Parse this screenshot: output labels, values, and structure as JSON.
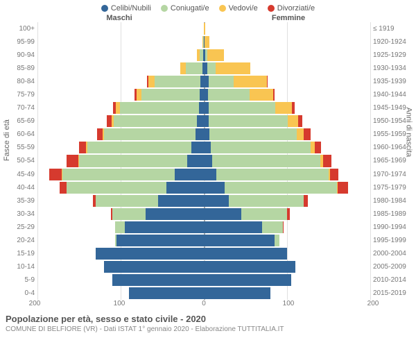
{
  "legend": [
    {
      "label": "Celibi/Nubili",
      "color": "#336699"
    },
    {
      "label": "Coniugati/e",
      "color": "#b5d6a3"
    },
    {
      "label": "Vedovi/e",
      "color": "#f9c552"
    },
    {
      "label": "Divorziati/e",
      "color": "#d63a2e"
    }
  ],
  "header_male": "Maschi",
  "header_female": "Femmine",
  "axis_left": "Fasce di età",
  "axis_right": "Anni di nascita",
  "x_max": 200,
  "x_ticks": [
    200,
    100,
    0,
    100,
    200
  ],
  "colors": {
    "single": "#336699",
    "married": "#b5d6a3",
    "widowed": "#f9c552",
    "divorced": "#d63a2e",
    "grid": "#e0e0e0",
    "center": "#aaaaaa",
    "bg": "#ffffff"
  },
  "title": "Popolazione per età, sesso e stato civile - 2020",
  "subtitle": "COMUNE DI BELFIORE (VR) - Dati ISTAT 1° gennaio 2020 - Elaborazione TUTTITALIA.IT",
  "rows": [
    {
      "age": "100+",
      "birth": "≤ 1919",
      "m": {
        "s": 0,
        "c": 0,
        "w": 0,
        "d": 0
      },
      "f": {
        "s": 0,
        "c": 0,
        "w": 2,
        "d": 0
      }
    },
    {
      "age": "95-99",
      "birth": "1920-1924",
      "m": {
        "s": 0,
        "c": 1,
        "w": 1,
        "d": 0
      },
      "f": {
        "s": 1,
        "c": 0,
        "w": 6,
        "d": 0
      }
    },
    {
      "age": "90-94",
      "birth": "1925-1929",
      "m": {
        "s": 1,
        "c": 4,
        "w": 3,
        "d": 0
      },
      "f": {
        "s": 2,
        "c": 2,
        "w": 20,
        "d": 0
      }
    },
    {
      "age": "85-89",
      "birth": "1930-1934",
      "m": {
        "s": 2,
        "c": 20,
        "w": 6,
        "d": 0
      },
      "f": {
        "s": 4,
        "c": 10,
        "w": 42,
        "d": 0
      }
    },
    {
      "age": "80-84",
      "birth": "1935-1939",
      "m": {
        "s": 4,
        "c": 55,
        "w": 8,
        "d": 1
      },
      "f": {
        "s": 6,
        "c": 30,
        "w": 40,
        "d": 1
      }
    },
    {
      "age": "75-79",
      "birth": "1940-1944",
      "m": {
        "s": 5,
        "c": 70,
        "w": 6,
        "d": 2
      },
      "f": {
        "s": 5,
        "c": 50,
        "w": 28,
        "d": 2
      }
    },
    {
      "age": "70-74",
      "birth": "1945-1949",
      "m": {
        "s": 6,
        "c": 95,
        "w": 5,
        "d": 3
      },
      "f": {
        "s": 6,
        "c": 80,
        "w": 20,
        "d": 3
      }
    },
    {
      "age": "65-69",
      "birth": "1950-1954",
      "m": {
        "s": 8,
        "c": 100,
        "w": 3,
        "d": 6
      },
      "f": {
        "s": 6,
        "c": 95,
        "w": 12,
        "d": 5
      }
    },
    {
      "age": "60-64",
      "birth": "1955-1959",
      "m": {
        "s": 10,
        "c": 110,
        "w": 2,
        "d": 6
      },
      "f": {
        "s": 7,
        "c": 105,
        "w": 8,
        "d": 8
      }
    },
    {
      "age": "55-59",
      "birth": "1960-1964",
      "m": {
        "s": 15,
        "c": 125,
        "w": 2,
        "d": 8
      },
      "f": {
        "s": 8,
        "c": 120,
        "w": 5,
        "d": 8
      }
    },
    {
      "age": "50-54",
      "birth": "1965-1969",
      "m": {
        "s": 20,
        "c": 130,
        "w": 1,
        "d": 14
      },
      "f": {
        "s": 10,
        "c": 130,
        "w": 3,
        "d": 10
      }
    },
    {
      "age": "45-49",
      "birth": "1970-1974",
      "m": {
        "s": 35,
        "c": 135,
        "w": 1,
        "d": 15
      },
      "f": {
        "s": 15,
        "c": 135,
        "w": 2,
        "d": 10
      }
    },
    {
      "age": "40-44",
      "birth": "1975-1979",
      "m": {
        "s": 45,
        "c": 120,
        "w": 0,
        "d": 8
      },
      "f": {
        "s": 25,
        "c": 135,
        "w": 1,
        "d": 12
      }
    },
    {
      "age": "35-39",
      "birth": "1980-1984",
      "m": {
        "s": 55,
        "c": 75,
        "w": 0,
        "d": 3
      },
      "f": {
        "s": 30,
        "c": 90,
        "w": 0,
        "d": 5
      }
    },
    {
      "age": "30-34",
      "birth": "1985-1989",
      "m": {
        "s": 70,
        "c": 40,
        "w": 0,
        "d": 2
      },
      "f": {
        "s": 45,
        "c": 55,
        "w": 0,
        "d": 3
      }
    },
    {
      "age": "25-29",
      "birth": "1990-1994",
      "m": {
        "s": 95,
        "c": 12,
        "w": 0,
        "d": 0
      },
      "f": {
        "s": 70,
        "c": 25,
        "w": 0,
        "d": 1
      }
    },
    {
      "age": "20-24",
      "birth": "1995-1999",
      "m": {
        "s": 105,
        "c": 2,
        "w": 0,
        "d": 0
      },
      "f": {
        "s": 85,
        "c": 6,
        "w": 0,
        "d": 0
      }
    },
    {
      "age": "15-19",
      "birth": "2000-2004",
      "m": {
        "s": 130,
        "c": 0,
        "w": 0,
        "d": 0
      },
      "f": {
        "s": 100,
        "c": 0,
        "w": 0,
        "d": 0
      }
    },
    {
      "age": "10-14",
      "birth": "2005-2009",
      "m": {
        "s": 120,
        "c": 0,
        "w": 0,
        "d": 0
      },
      "f": {
        "s": 110,
        "c": 0,
        "w": 0,
        "d": 0
      }
    },
    {
      "age": "5-9",
      "birth": "2010-2014",
      "m": {
        "s": 110,
        "c": 0,
        "w": 0,
        "d": 0
      },
      "f": {
        "s": 105,
        "c": 0,
        "w": 0,
        "d": 0
      }
    },
    {
      "age": "0-4",
      "birth": "2015-2019",
      "m": {
        "s": 90,
        "c": 0,
        "w": 0,
        "d": 0
      },
      "f": {
        "s": 80,
        "c": 0,
        "w": 0,
        "d": 0
      }
    }
  ]
}
